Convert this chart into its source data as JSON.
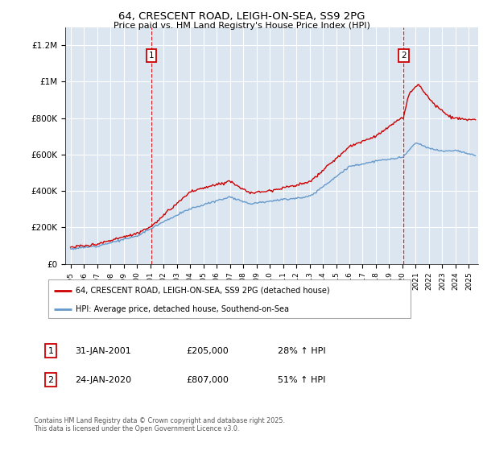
{
  "title": "64, CRESCENT ROAD, LEIGH-ON-SEA, SS9 2PG",
  "subtitle": "Price paid vs. HM Land Registry's House Price Index (HPI)",
  "ylabel_ticks": [
    "£0",
    "£200K",
    "£400K",
    "£600K",
    "£800K",
    "£1M",
    "£1.2M"
  ],
  "y_values": [
    0,
    200000,
    400000,
    600000,
    800000,
    1000000,
    1200000
  ],
  "ylim": [
    0,
    1300000
  ],
  "xlim_start": 1994.6,
  "xlim_end": 2025.7,
  "sale1_date": 2001.08,
  "sale1_price": 205000,
  "sale1_label": "1",
  "sale2_date": 2020.08,
  "sale2_price": 807000,
  "sale2_label": "2",
  "red_line_color": "#cc0000",
  "blue_line_color": "#6699cc",
  "vline_color": "#cc0000",
  "plot_bg_color": "#dce6f1",
  "grid_color": "#ffffff",
  "legend_line1": "64, CRESCENT ROAD, LEIGH-ON-SEA, SS9 2PG (detached house)",
  "legend_line2": "HPI: Average price, detached house, Southend-on-Sea",
  "footnote": "Contains HM Land Registry data © Crown copyright and database right 2025.\nThis data is licensed under the Open Government Licence v3.0.",
  "xtick_years": [
    1995,
    1996,
    1997,
    1998,
    1999,
    2000,
    2001,
    2002,
    2003,
    2004,
    2005,
    2006,
    2007,
    2008,
    2009,
    2010,
    2011,
    2012,
    2013,
    2014,
    2015,
    2016,
    2017,
    2018,
    2019,
    2020,
    2021,
    2022,
    2023,
    2024,
    2025
  ],
  "ann1_date": "31-JAN-2001",
  "ann1_price": "£205,000",
  "ann1_hpi": "28% ↑ HPI",
  "ann2_date": "24-JAN-2020",
  "ann2_price": "£807,000",
  "ann2_hpi": "51% ↑ HPI"
}
